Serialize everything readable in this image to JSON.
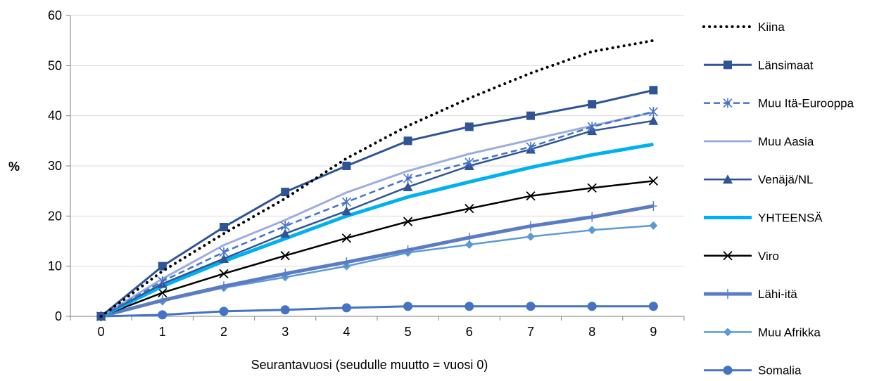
{
  "chart_data": {
    "type": "line",
    "xlabel": "Seurantavuosi (seudulle muutto = vuosi 0)",
    "ylabel": "%",
    "x": [
      0,
      1,
      2,
      3,
      4,
      5,
      6,
      7,
      8,
      9
    ],
    "ylim": [
      0,
      60
    ],
    "yticks": [
      0,
      10,
      20,
      30,
      40,
      50,
      60
    ],
    "grid": "horizontal",
    "legend": "right",
    "series": [
      {
        "name": "Kiina",
        "color": "#000000",
        "style": "dotted",
        "marker": "none",
        "width": 4,
        "values": [
          0,
          9,
          16.5,
          23.5,
          31.5,
          38,
          43.5,
          48.5,
          52.8,
          55
        ]
      },
      {
        "name": "Länsimaat",
        "color": "#2f5597",
        "style": "solid",
        "marker": "square",
        "width": 3,
        "values": [
          0,
          10,
          17.8,
          24.8,
          30,
          35,
          37.8,
          40,
          42.3,
          45.1
        ]
      },
      {
        "name": "Muu Itä-Eurooppa",
        "color": "#4472c4",
        "style": "dashed",
        "marker": "asterisk",
        "width": 2.5,
        "values": [
          0,
          7,
          12.8,
          18,
          22.8,
          27.5,
          30.7,
          33.8,
          37.8,
          40.8
        ]
      },
      {
        "name": "Muu Aasia",
        "color": "#9dade0",
        "style": "solid",
        "marker": "none",
        "width": 3,
        "values": [
          0,
          7.5,
          14.2,
          19.2,
          24.7,
          29,
          32.4,
          35.2,
          38,
          40.7
        ]
      },
      {
        "name": "Venäjä/NL",
        "color": "#2f5597",
        "style": "solid",
        "marker": "triangle",
        "width": 2.5,
        "values": [
          0,
          6.5,
          11.5,
          16.5,
          21,
          25.8,
          30,
          33.3,
          37,
          39
        ]
      },
      {
        "name": "YHTEENSÄ",
        "color": "#00b0f0",
        "style": "solid",
        "marker": "none",
        "width": 5,
        "values": [
          0,
          6,
          11,
          15.5,
          20,
          23.8,
          26.8,
          29.7,
          32.2,
          34.3
        ]
      },
      {
        "name": "Viro",
        "color": "#000000",
        "style": "solid",
        "marker": "x",
        "width": 2.5,
        "values": [
          0,
          4.7,
          8.5,
          12.1,
          15.6,
          18.9,
          21.5,
          24,
          25.6,
          27
        ]
      },
      {
        "name": "Lähi-itä",
        "color": "#5b7cc4",
        "style": "solid",
        "marker": "plus",
        "width": 5,
        "values": [
          0,
          3.2,
          6,
          8.5,
          10.8,
          13.2,
          15.7,
          18,
          19.8,
          22
        ]
      },
      {
        "name": "Muu Afrikka",
        "color": "#5b9bd5",
        "style": "solid",
        "marker": "diamond",
        "width": 2.5,
        "values": [
          0,
          3,
          5.7,
          7.8,
          10,
          12.7,
          14.3,
          15.9,
          17.2,
          18.1
        ]
      },
      {
        "name": "Somalia",
        "color": "#4472c4",
        "style": "solid",
        "marker": "circle",
        "width": 3,
        "values": [
          0,
          0.3,
          1,
          1.3,
          1.7,
          2,
          2,
          2,
          2,
          2
        ]
      }
    ]
  }
}
